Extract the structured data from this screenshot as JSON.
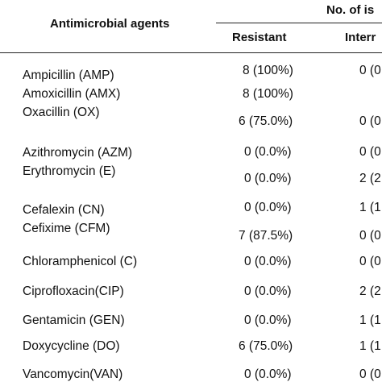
{
  "table": {
    "col_agents": "Antimicrobial agents",
    "group_header": "No. of is",
    "col_resistant": "Resistant",
    "col_intermediate": "Interr",
    "rows": [
      {
        "agent": "Ampicillin (AMP)",
        "resistant": "8 (100%)",
        "intermediate": "0 (0"
      },
      {
        "agent": "Amoxicillin (AMX)",
        "resistant": "8 (100%)",
        "intermediate": ""
      },
      {
        "agent": "Oxacillin (OX)",
        "resistant": "6 (75.0%)",
        "intermediate": "0 (0"
      },
      {
        "agent": "Azithromycin (AZM)",
        "resistant": "0 (0.0%)",
        "intermediate": "0 (0"
      },
      {
        "agent": "Erythromycin (E)",
        "resistant": "0 (0.0%)",
        "intermediate": "2 (2"
      },
      {
        "agent": "Cefalexin (CN)",
        "resistant": "0 (0.0%)",
        "intermediate": "1 (1"
      },
      {
        "agent": "Cefixime (CFM)",
        "resistant": "7 (87.5%)",
        "intermediate": "0 (0"
      },
      {
        "agent": "Chloramphenicol (C)",
        "resistant": "0 (0.0%)",
        "intermediate": "0 (0"
      },
      {
        "agent": "Ciprofloxacin(CIP)",
        "resistant": "0 (0.0%)",
        "intermediate": "2 (2"
      },
      {
        "agent": "Gentamicin (GEN)",
        "resistant": "0 (0.0%)",
        "intermediate": "1 (1"
      },
      {
        "agent": "Doxycycline (DO)",
        "resistant": "6 (75.0%)",
        "intermediate": "1 (1"
      },
      {
        "agent": "Vancomycin(VAN)",
        "resistant": "0 (0.0%)",
        "intermediate": "0 (0"
      }
    ]
  }
}
